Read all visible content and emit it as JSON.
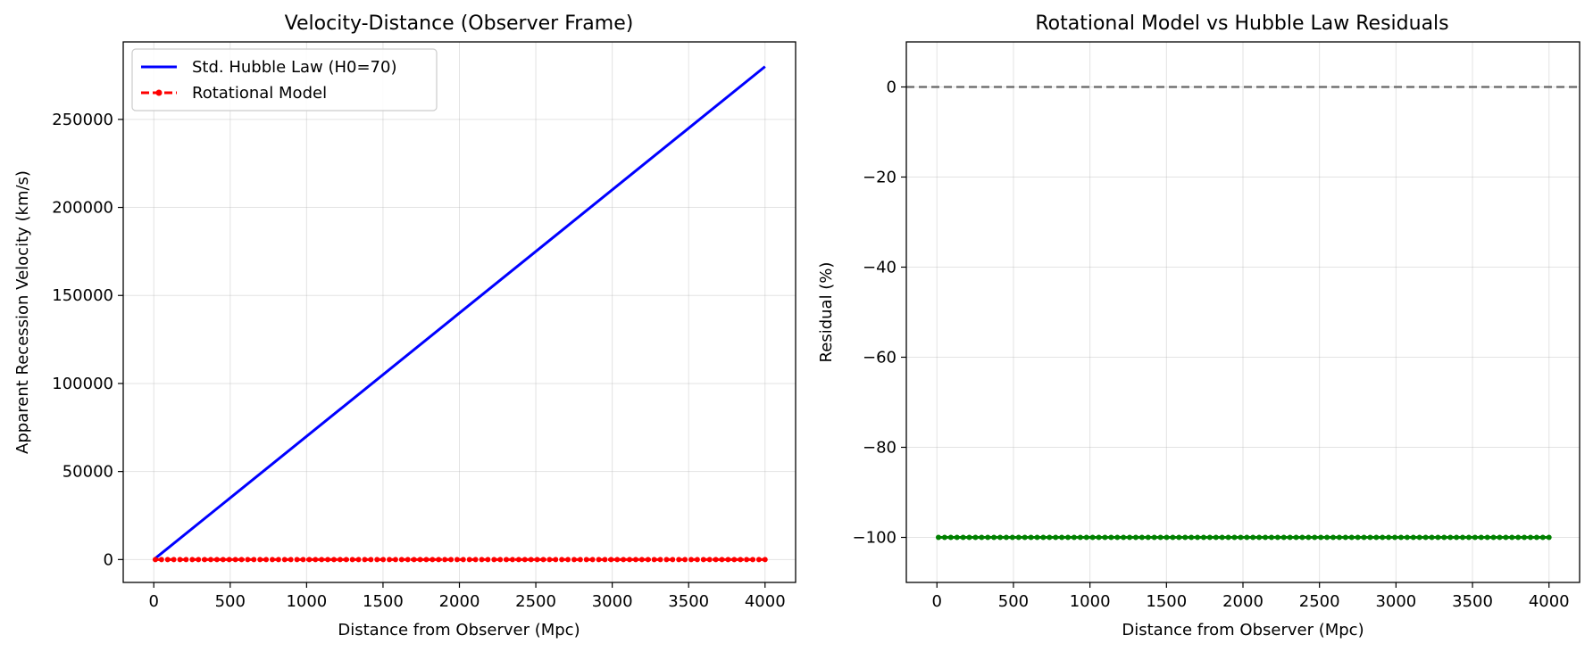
{
  "chart_data": [
    {
      "type": "line",
      "title": "Velocity-Distance (Observer Frame)",
      "xlabel": "Distance from Observer (Mpc)",
      "ylabel": "Apparent Recession Velocity (km/s)",
      "xlim": [
        -200,
        4200
      ],
      "ylim": [
        -13000,
        294000
      ],
      "xticks": [
        0,
        500,
        1000,
        1500,
        2000,
        2500,
        3000,
        3500,
        4000
      ],
      "yticks": [
        0,
        50000,
        100000,
        150000,
        200000,
        250000
      ],
      "grid": true,
      "legend": "top-left",
      "series": [
        {
          "name": "Std. Hubble Law (H0=70)",
          "color": "#0000ff",
          "style": "solid",
          "x": [
            10,
            4000
          ],
          "y": [
            700,
            280000
          ]
        },
        {
          "name": "Rotational Model",
          "color": "#ff0000",
          "style": "dashed-dots",
          "x_start": 10,
          "x_end": 4000,
          "n_points": 100,
          "y_constant": 0
        }
      ]
    },
    {
      "type": "line",
      "title": "Rotational Model vs Hubble Law Residuals",
      "xlabel": "Distance from Observer (Mpc)",
      "ylabel": "Residual (%)",
      "xlim": [
        -200,
        4200
      ],
      "ylim": [
        -110,
        10
      ],
      "xticks": [
        0,
        500,
        1000,
        1500,
        2000,
        2500,
        3000,
        3500,
        4000
      ],
      "yticks": [
        0,
        -20,
        -40,
        -60,
        -80,
        -100
      ],
      "ytick_labels": [
        "0",
        "−20",
        "−40",
        "−60",
        "−80",
        "−100"
      ],
      "grid": true,
      "reference_line": {
        "y": 0,
        "color": "#666666",
        "style": "dashed"
      },
      "series": [
        {
          "color": "#008000",
          "style": "solid-dots",
          "x_start": 10,
          "x_end": 4000,
          "n_points": 100,
          "y_constant": -100
        }
      ]
    }
  ]
}
